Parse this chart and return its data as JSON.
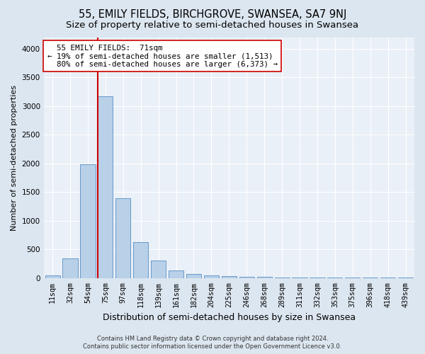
{
  "title": "55, EMILY FIELDS, BIRCHGROVE, SWANSEA, SA7 9NJ",
  "subtitle": "Size of property relative to semi-detached houses in Swansea",
  "xlabel": "Distribution of semi-detached houses by size in Swansea",
  "ylabel": "Number of semi-detached properties",
  "footer_line1": "Contains HM Land Registry data © Crown copyright and database right 2024.",
  "footer_line2": "Contains public sector information licensed under the Open Government Licence v3.0.",
  "categories": [
    "11sqm",
    "32sqm",
    "54sqm",
    "75sqm",
    "97sqm",
    "118sqm",
    "139sqm",
    "161sqm",
    "182sqm",
    "204sqm",
    "225sqm",
    "246sqm",
    "268sqm",
    "289sqm",
    "311sqm",
    "332sqm",
    "353sqm",
    "375sqm",
    "396sqm",
    "418sqm",
    "439sqm"
  ],
  "values": [
    50,
    340,
    1980,
    3170,
    1390,
    630,
    305,
    130,
    75,
    50,
    35,
    25,
    20,
    15,
    10,
    5,
    5,
    5,
    5,
    5,
    5
  ],
  "bar_color": "#b8d0e8",
  "bar_edge_color": "#6699cc",
  "vline_color": "#cc0000",
  "vline_x_index": 3,
  "annotation_text_line1": "  55 EMILY FIELDS:  71sqm",
  "annotation_text_line2": "← 19% of semi-detached houses are smaller (1,513)",
  "annotation_text_line3": "  80% of semi-detached houses are larger (6,373) →",
  "annotation_box_color": "#ffffff",
  "annotation_box_edge": "#cc0000",
  "ylim": [
    0,
    4200
  ],
  "yticks": [
    0,
    500,
    1000,
    1500,
    2000,
    2500,
    3000,
    3500,
    4000
  ],
  "bg_color": "#dce6f0",
  "plot_bg_color": "#eaf0f7",
  "title_fontsize": 10.5,
  "subtitle_fontsize": 9.5,
  "ylabel_fontsize": 8,
  "xlabel_fontsize": 9
}
